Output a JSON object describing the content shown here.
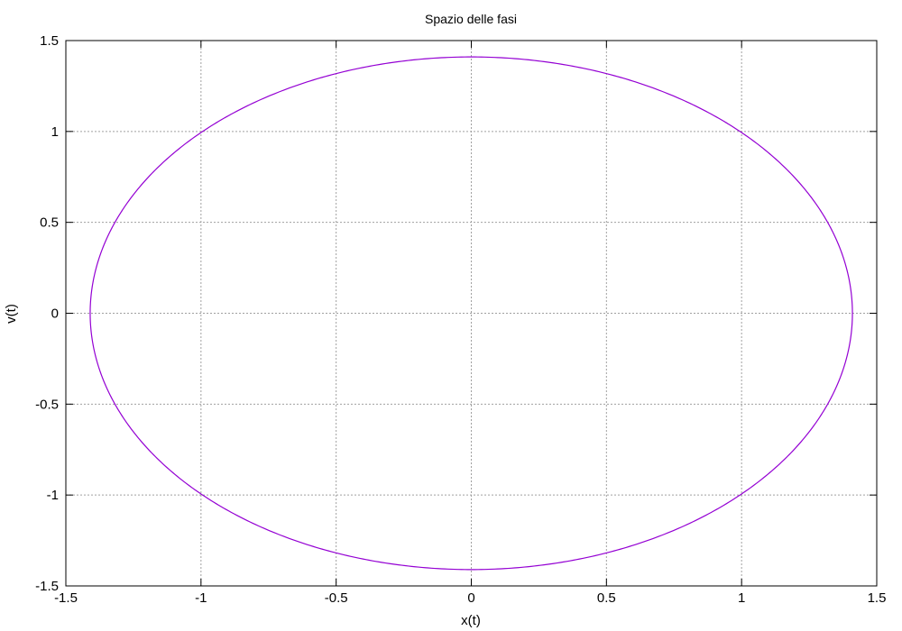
{
  "chart_data": {
    "type": "line",
    "title": "Spazio delle fasi",
    "xlabel": "x(t)",
    "ylabel": "v(t)",
    "xlim": [
      -1.5,
      1.5
    ],
    "ylim": [
      -1.5,
      1.5
    ],
    "xticks": [
      -1.5,
      -1,
      -0.5,
      0,
      0.5,
      1,
      1.5
    ],
    "yticks": [
      -1.5,
      -1,
      -0.5,
      0,
      0.5,
      1,
      1.5
    ],
    "xtick_labels": [
      "-1.5",
      "-1",
      "-0.5",
      "0",
      "0.5",
      "1",
      "1.5"
    ],
    "ytick_labels": [
      "-1.5",
      "-1",
      "-0.5",
      "0",
      "0.5",
      "1",
      "1.5"
    ],
    "grid": true,
    "series": [
      {
        "color": "#9400d3",
        "shape": "closed orbit (ellipse)",
        "center": [
          0,
          0
        ],
        "x_amplitude": 1.41,
        "y_amplitude": 1.41
      }
    ]
  }
}
